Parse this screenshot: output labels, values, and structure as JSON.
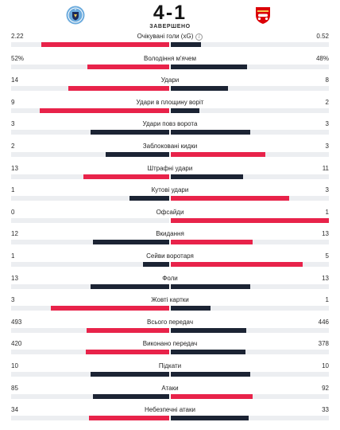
{
  "match": {
    "score": "4-1",
    "status": "ЗАВЕРШЕНО",
    "home_logo": "manchester-city-crest-icon",
    "away_logo": "arsenal-crest-icon"
  },
  "colors": {
    "winner": "#e8234a",
    "loser": "#1c2434",
    "track": "#eceef1"
  },
  "stats": [
    {
      "label": "Очікувані голи (xG)",
      "home": "2.22",
      "away": "0.52",
      "info": true
    },
    {
      "label": "Володіння м'ячем",
      "home": "52%",
      "away": "48%"
    },
    {
      "label": "Удари",
      "home": "14",
      "away": "8"
    },
    {
      "label": "Удари в площину воріт",
      "home": "9",
      "away": "2"
    },
    {
      "label": "Удари повз ворота",
      "home": "3",
      "away": "3"
    },
    {
      "label": "Заблоковані кидки",
      "home": "2",
      "away": "3"
    },
    {
      "label": "Штрафні удари",
      "home": "13",
      "away": "11"
    },
    {
      "label": "Кутові удари",
      "home": "1",
      "away": "3"
    },
    {
      "label": "Офсайди",
      "home": "0",
      "away": "1"
    },
    {
      "label": "Вкидання",
      "home": "12",
      "away": "13"
    },
    {
      "label": "Сейви воротаря",
      "home": "1",
      "away": "5"
    },
    {
      "label": "Фоли",
      "home": "13",
      "away": "13"
    },
    {
      "label": "Жовті картки",
      "home": "3",
      "away": "1"
    },
    {
      "label": "Всього передач",
      "home": "493",
      "away": "446"
    },
    {
      "label": "Виконано передач",
      "home": "420",
      "away": "378"
    },
    {
      "label": "Підкати",
      "home": "10",
      "away": "10"
    },
    {
      "label": "Атаки",
      "home": "85",
      "away": "92"
    },
    {
      "label": "Небезпечні атаки",
      "home": "34",
      "away": "33"
    }
  ]
}
